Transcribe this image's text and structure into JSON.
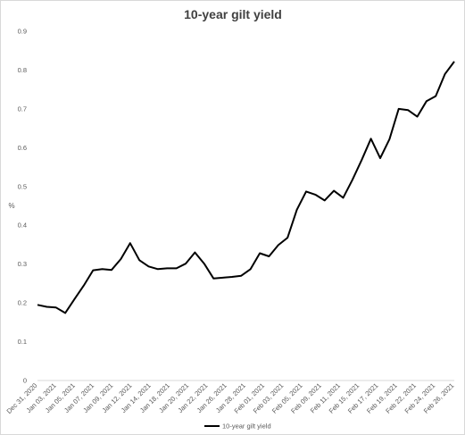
{
  "chart_data": {
    "type": "line",
    "title": "10-year gilt yield",
    "xlabel": "",
    "ylabel": "%",
    "ylim": [
      0,
      0.9
    ],
    "yticks": [
      "0",
      "0.1",
      "0.2",
      "0.3",
      "0.4",
      "0.5",
      "0.6",
      "0.7",
      "0.8",
      "0.9"
    ],
    "grid": false,
    "legend_position": "bottom",
    "x_tick_labels": [
      "Dec 31, 2020",
      "Jan 03, 2021",
      "Jan 05, 2021",
      "Jan 07, 2021",
      "Jan 09, 2021",
      "Jan 12, 2021",
      "Jan 14, 2021",
      "Jan 18, 2021",
      "Jan 20, 2021",
      "Jan 22, 2021",
      "Jan 26, 2021",
      "Jan 28, 2021",
      "Feb 01, 2021",
      "Feb 03, 2021",
      "Feb 05, 2021",
      "Feb 09, 2021",
      "Feb 11, 2021",
      "Feb 15, 2021",
      "Feb 17, 2021",
      "Feb 19, 2021",
      "Feb 22, 2021",
      "Feb 24, 2021",
      "Feb 26, 2021"
    ],
    "series": [
      {
        "name": "10-year gilt yield",
        "color": "#000000",
        "values": [
          0.195,
          0.19,
          0.188,
          0.174,
          0.21,
          0.245,
          0.284,
          0.287,
          0.285,
          0.313,
          0.354,
          0.31,
          0.294,
          0.287,
          0.289,
          0.289,
          0.301,
          0.33,
          0.301,
          0.263,
          0.265,
          0.267,
          0.27,
          0.287,
          0.328,
          0.32,
          0.349,
          0.368,
          0.44,
          0.487,
          0.479,
          0.464,
          0.489,
          0.471,
          0.517,
          0.568,
          0.623,
          0.573,
          0.622,
          0.7,
          0.697,
          0.68,
          0.72,
          0.733,
          0.79,
          0.822
        ]
      }
    ]
  }
}
